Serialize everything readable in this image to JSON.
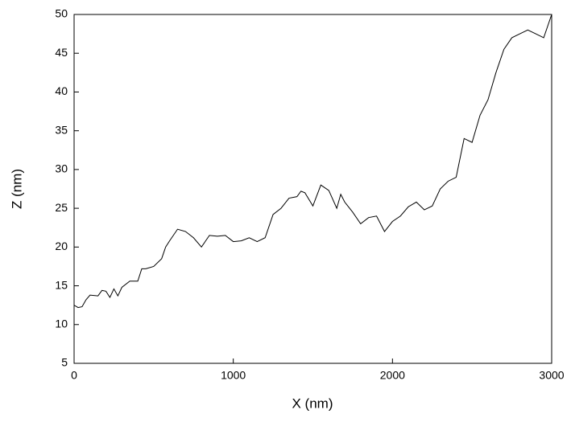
{
  "chart_data": {
    "type": "line",
    "xlabel": "X (nm)",
    "ylabel": "Z (nm)",
    "x": [
      0,
      25,
      50,
      75,
      100,
      150,
      175,
      200,
      225,
      250,
      275,
      300,
      350,
      400,
      425,
      450,
      500,
      550,
      575,
      600,
      650,
      700,
      750,
      800,
      850,
      900,
      950,
      1000,
      1050,
      1100,
      1150,
      1200,
      1250,
      1300,
      1350,
      1400,
      1425,
      1450,
      1500,
      1550,
      1600,
      1650,
      1675,
      1700,
      1750,
      1800,
      1850,
      1900,
      1950,
      2000,
      2050,
      2100,
      2150,
      2200,
      2250,
      2300,
      2350,
      2400,
      2450,
      2500,
      2550,
      2600,
      2650,
      2700,
      2750,
      2800,
      2850,
      2900,
      2950,
      3000
    ],
    "series": [
      {
        "name": "Z",
        "color": "#000000",
        "values": [
          12.5,
          12.2,
          12.3,
          13.2,
          13.8,
          13.7,
          14.4,
          14.3,
          13.5,
          14.6,
          13.7,
          14.8,
          15.6,
          15.6,
          17.2,
          17.2,
          17.5,
          18.5,
          20,
          20.8,
          22.3,
          22,
          21.2,
          20,
          21.5,
          21.4,
          21.5,
          20.7,
          20.8,
          21.2,
          20.7,
          21.2,
          24.2,
          25,
          26.3,
          26.5,
          27.2,
          27,
          25.3,
          28,
          27.3,
          25,
          26.8,
          25.8,
          24.5,
          23,
          23.8,
          24,
          22,
          23.3,
          24,
          25.2,
          25.8,
          24.8,
          25.3,
          27.5,
          28.5,
          29,
          34,
          33.5,
          37,
          39,
          42.5,
          45.5,
          47,
          47.5,
          48,
          47.5,
          47,
          50
        ]
      }
    ],
    "xlim": [
      0,
      3000
    ],
    "xticks": [
      0,
      1000,
      2000,
      3000
    ],
    "ylim": [
      5,
      50
    ],
    "yticks": [
      5,
      10,
      15,
      20,
      25,
      30,
      35,
      40,
      45,
      50
    ]
  }
}
